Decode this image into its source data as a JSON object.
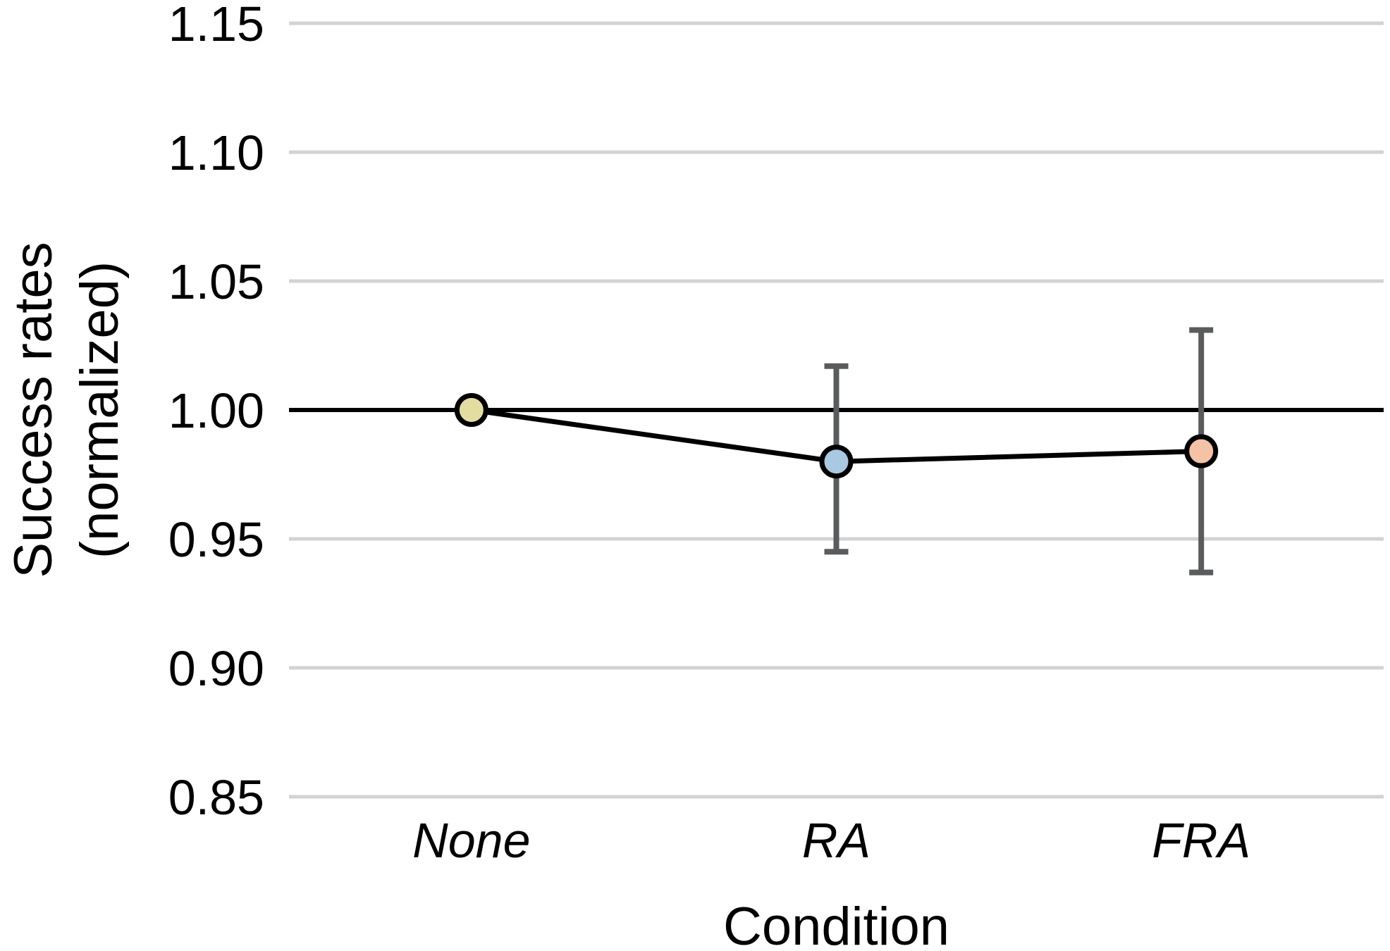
{
  "chart_data": {
    "type": "line",
    "title": "",
    "xlabel": "Condition",
    "ylabel_line1": "Success rates",
    "ylabel_line2": "(normalized)",
    "categories": [
      "None",
      "RA",
      "FRA"
    ],
    "series": [
      {
        "name": "Success rates (normalized)",
        "values": [
          1.0,
          0.98,
          0.984
        ],
        "error_low": [
          1.0,
          0.945,
          0.937
        ],
        "error_high": [
          1.0,
          1.017,
          1.031
        ],
        "point_colors": [
          "#e4dda2",
          "#a9c8e1",
          "#f4c2a4"
        ]
      }
    ],
    "ylim": [
      0.85,
      1.15
    ],
    "ytick_labels": [
      "0.85",
      "0.90",
      "0.95",
      "1.00",
      "1.05",
      "1.10",
      "1.15"
    ],
    "ytick_values": [
      0.85,
      0.9,
      0.95,
      1.0,
      1.05,
      1.1,
      1.15
    ],
    "reference_line": 1.0,
    "grid": true,
    "legend_position": "none",
    "colors": {
      "gridline": "#d3d3d3",
      "reference_line": "#000000",
      "series_line": "#000000",
      "error_bar": "#595b5d",
      "marker_stroke": "#000000",
      "text": "#000000"
    }
  }
}
